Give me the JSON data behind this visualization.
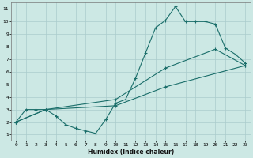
{
  "xlabel": "Humidex (Indice chaleur)",
  "bg_color": "#cce8e4",
  "grid_color": "#aacccc",
  "line_color": "#1a6e6a",
  "xlim": [
    -0.5,
    23.5
  ],
  "ylim": [
    0.5,
    11.5
  ],
  "xticks": [
    0,
    1,
    2,
    3,
    4,
    5,
    6,
    7,
    8,
    9,
    10,
    11,
    12,
    13,
    14,
    15,
    16,
    17,
    18,
    19,
    20,
    21,
    22,
    23
  ],
  "yticks": [
    1,
    2,
    3,
    4,
    5,
    6,
    7,
    8,
    9,
    10,
    11
  ],
  "line1_x": [
    0,
    1,
    2,
    3,
    4,
    5,
    6,
    7,
    8,
    9,
    10,
    11,
    12,
    13,
    14,
    15,
    16,
    17,
    18,
    19,
    20,
    21,
    22,
    23
  ],
  "line1_y": [
    2,
    3,
    3,
    3,
    2.5,
    1.8,
    1.5,
    1.3,
    1.1,
    2.2,
    3.5,
    3.8,
    5.5,
    7.5,
    9.5,
    10.1,
    11.2,
    10,
    10,
    10,
    9.8,
    7.9,
    7.4,
    6.7
  ],
  "line2_x": [
    0,
    3,
    10,
    15,
    20,
    23
  ],
  "line2_y": [
    2,
    3,
    3.8,
    6.3,
    7.8,
    6.5
  ],
  "line3_x": [
    0,
    3,
    10,
    15,
    23
  ],
  "line3_y": [
    2,
    3,
    3.3,
    4.8,
    6.5
  ]
}
